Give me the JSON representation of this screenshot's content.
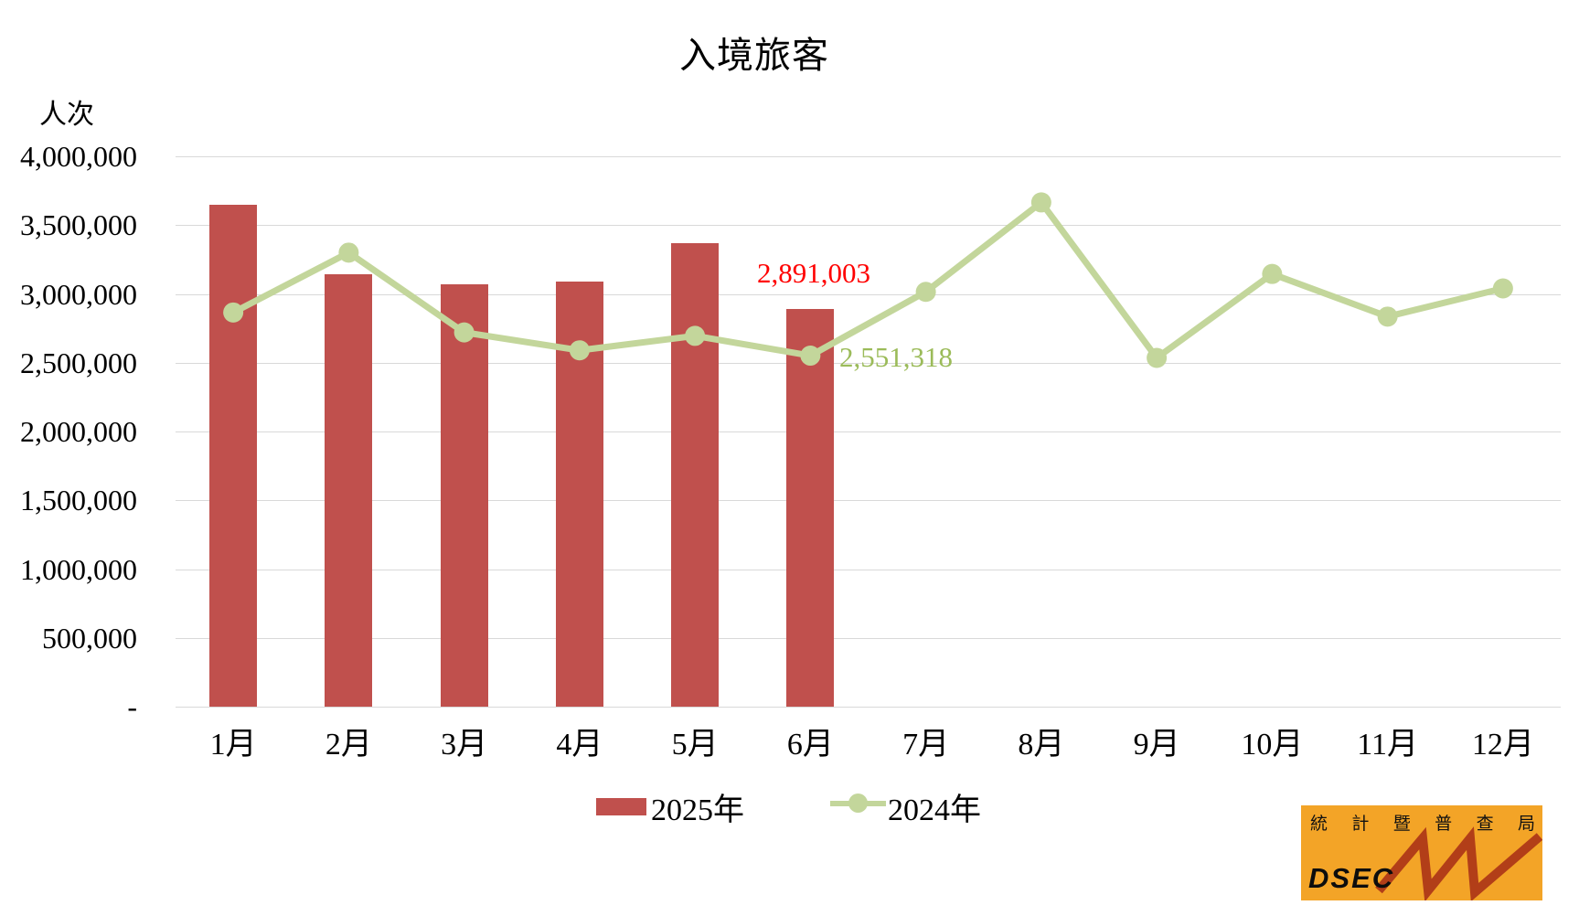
{
  "title": "入境旅客",
  "y_axis": {
    "unit_label": "人次",
    "ticks": [
      "4,000,000",
      "3,500,000",
      "3,000,000",
      "2,500,000",
      "2,000,000",
      "1,500,000",
      "1,000,000",
      "500,000",
      "-"
    ]
  },
  "chart_data": {
    "type": "combo bar+line",
    "title": "入境旅客",
    "xlabel": "",
    "ylabel": "人次",
    "ylim": [
      0,
      4000000
    ],
    "ytick_step": 500000,
    "grid": true,
    "legend_position": "bottom",
    "categories": [
      "1月",
      "2月",
      "3月",
      "4月",
      "5月",
      "6月",
      "7月",
      "8月",
      "9月",
      "10月",
      "11月",
      "12月"
    ],
    "series": [
      {
        "name": "2025年",
        "type": "bar",
        "color": "#c0504d",
        "values": [
          3650000,
          3145000,
          3070000,
          3090000,
          3370000,
          2891003
        ]
      },
      {
        "name": "2024年",
        "type": "line",
        "color": "#c3d69b",
        "values": [
          2865000,
          3300000,
          2720000,
          2590000,
          2695000,
          2551318,
          3015000,
          3665000,
          2535000,
          3145000,
          2835000,
          3040000
        ]
      }
    ],
    "annotations": [
      {
        "text": "2,891,003",
        "series": "2025年",
        "category": "6月",
        "color": "#ff0000"
      },
      {
        "text": "2,551,318",
        "series": "2024年",
        "category": "6月",
        "color": "#9bbb59"
      }
    ]
  },
  "legend": {
    "items": [
      {
        "label": "2025年",
        "swatch": "bar",
        "color": "#c0504d"
      },
      {
        "label": "2024年",
        "swatch": "line-marker",
        "color": "#c3d69b"
      }
    ]
  },
  "logo": {
    "org_cn": "統計暨普查局",
    "acronym": "DSEC",
    "bg_color": "#f3a427",
    "zigzag_color": "#b23e18"
  }
}
